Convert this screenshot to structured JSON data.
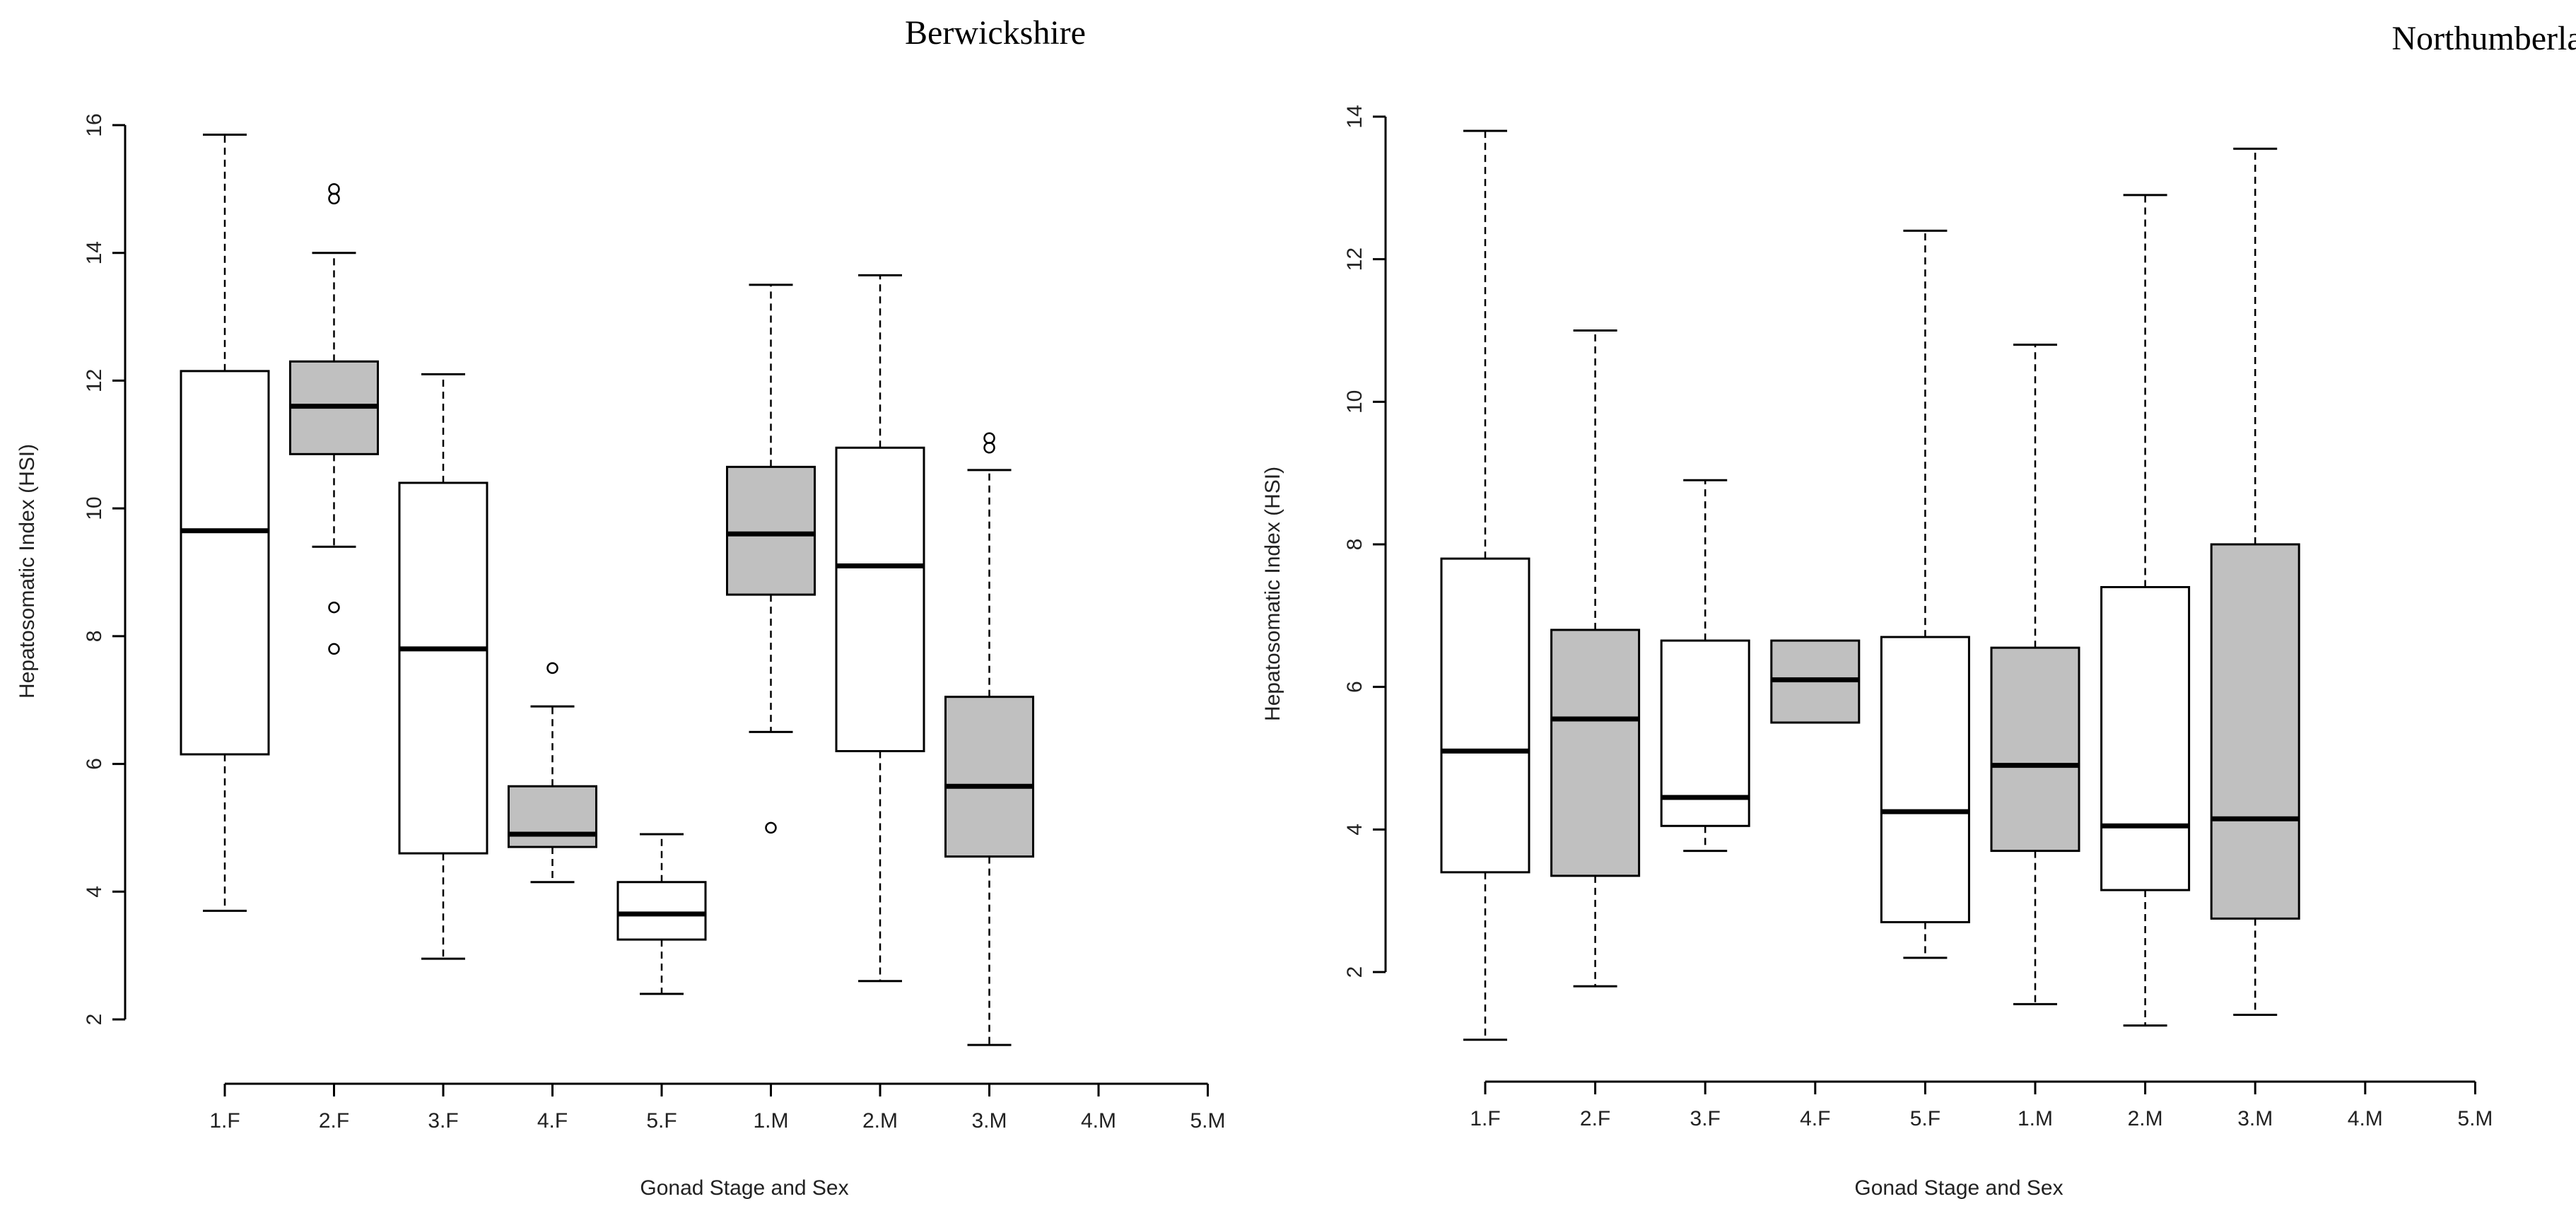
{
  "chart_data": [
    {
      "type": "boxplot",
      "title": "Berwickshire",
      "xlabel": "Gonad Stage and Sex",
      "ylabel": "Hepatosomatic Index (HSI)",
      "ylim": [
        1.5,
        16
      ],
      "yticks": [
        2,
        4,
        6,
        8,
        10,
        12,
        14,
        16
      ],
      "categories": [
        "1.F",
        "2.F",
        "3.F",
        "4.F",
        "5.F",
        "1.M",
        "2.M",
        "3.M",
        "4.M",
        "5.M"
      ],
      "fills": [
        "#ffffff",
        "#c0c0c0",
        "#ffffff",
        "#c0c0c0",
        "#ffffff",
        "#c0c0c0",
        "#ffffff",
        "#c0c0c0"
      ],
      "boxes": [
        {
          "category": "1.F",
          "min": 3.7,
          "q1": 6.15,
          "median": 9.65,
          "q3": 12.15,
          "max": 15.85,
          "outliers": []
        },
        {
          "category": "2.F",
          "min": 9.4,
          "q1": 10.85,
          "median": 11.6,
          "q3": 12.3,
          "max": 14.0,
          "outliers": [
            14.85,
            15.0,
            8.45,
            7.8
          ]
        },
        {
          "category": "3.F",
          "min": 2.95,
          "q1": 4.6,
          "median": 7.8,
          "q3": 10.4,
          "max": 12.1,
          "outliers": []
        },
        {
          "category": "4.F",
          "min": 4.15,
          "q1": 4.7,
          "median": 4.9,
          "q3": 5.65,
          "max": 6.9,
          "outliers": [
            7.5
          ]
        },
        {
          "category": "5.F",
          "min": 2.4,
          "q1": 3.25,
          "median": 3.65,
          "q3": 4.15,
          "max": 4.9,
          "outliers": []
        },
        {
          "category": "1.M",
          "min": 6.5,
          "q1": 8.65,
          "median": 9.6,
          "q3": 10.65,
          "max": 13.5,
          "outliers": [
            5.0
          ]
        },
        {
          "category": "2.M",
          "min": 2.6,
          "q1": 6.2,
          "median": 9.1,
          "q3": 10.95,
          "max": 13.65,
          "outliers": []
        },
        {
          "category": "3.M",
          "min": 1.6,
          "q1": 4.55,
          "median": 5.65,
          "q3": 7.05,
          "max": 10.6,
          "outliers": [
            10.95,
            11.1
          ]
        }
      ]
    },
    {
      "type": "boxplot",
      "title": "Northumberland",
      "xlabel": "Gonad Stage and Sex",
      "ylabel": "Hepatosomatic Index (HSI)",
      "ylim": [
        1,
        14
      ],
      "yticks": [
        2,
        4,
        6,
        8,
        10,
        12,
        14
      ],
      "categories": [
        "1.F",
        "2.F",
        "3.F",
        "4.F",
        "5.F",
        "1.M",
        "2.M",
        "3.M",
        "4.M",
        "5.M"
      ],
      "fills": [
        "#ffffff",
        "#c0c0c0",
        "#ffffff",
        "#c0c0c0",
        "#ffffff",
        "#c0c0c0",
        "#ffffff",
        "#c0c0c0"
      ],
      "boxes": [
        {
          "category": "1.F",
          "min": 1.05,
          "q1": 3.4,
          "median": 5.1,
          "q3": 7.8,
          "max": 13.8,
          "outliers": []
        },
        {
          "category": "2.F",
          "min": 1.8,
          "q1": 3.35,
          "median": 5.55,
          "q3": 6.8,
          "max": 11.0,
          "outliers": []
        },
        {
          "category": "3.F",
          "min": 3.7,
          "q1": 4.05,
          "median": 4.45,
          "q3": 6.65,
          "max": 8.9,
          "outliers": []
        },
        {
          "category": "4.F",
          "min": 5.5,
          "q1": 5.5,
          "median": 6.1,
          "q3": 6.65,
          "max": 6.65,
          "outliers": []
        },
        {
          "category": "5.F",
          "min": 2.2,
          "q1": 2.7,
          "median": 4.25,
          "q3": 6.7,
          "max": 12.4,
          "outliers": []
        },
        {
          "category": "1.M",
          "min": 1.55,
          "q1": 3.7,
          "median": 4.9,
          "q3": 6.55,
          "max": 10.8,
          "outliers": []
        },
        {
          "category": "2.M",
          "min": 1.25,
          "q1": 3.15,
          "median": 4.05,
          "q3": 7.4,
          "max": 12.9,
          "outliers": []
        },
        {
          "category": "3.M",
          "min": 1.4,
          "q1": 2.75,
          "median": 4.15,
          "q3": 8.0,
          "max": 13.55,
          "outliers": []
        }
      ]
    }
  ]
}
